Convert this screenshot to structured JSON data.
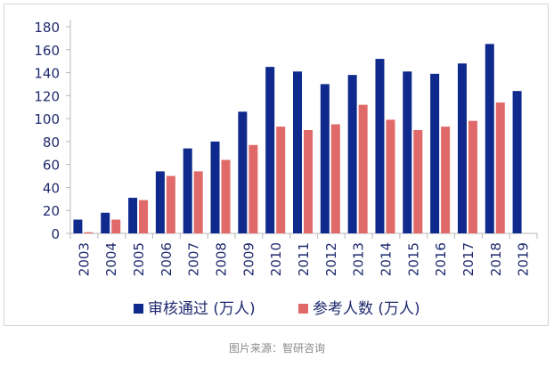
{
  "chart_data": {
    "type": "bar",
    "categories": [
      "2003",
      "2004",
      "2005",
      "2006",
      "2007",
      "2008",
      "2009",
      "2010",
      "2011",
      "2012",
      "2013",
      "2014",
      "2015",
      "2016",
      "2017",
      "2018",
      "2019"
    ],
    "series": [
      {
        "name": "审核通过 (万人)",
        "color": "#0f2a8c",
        "values": [
          12,
          18,
          31,
          54,
          74,
          80,
          106,
          145,
          141,
          130,
          138,
          152,
          141,
          139,
          148,
          165,
          124
        ]
      },
      {
        "name": "参考人数 (万人)",
        "color": "#e06a6a",
        "values": [
          1,
          12,
          29,
          50,
          54,
          64,
          77,
          93,
          90,
          95,
          112,
          99,
          90,
          93,
          98,
          114,
          null
        ]
      }
    ],
    "ylim": [
      0,
      180
    ],
    "yticks": [
      0,
      20,
      40,
      60,
      80,
      100,
      120,
      140,
      160,
      180
    ],
    "grid": false,
    "legend": "bottom"
  },
  "caption": "图片来源：智研咨询"
}
